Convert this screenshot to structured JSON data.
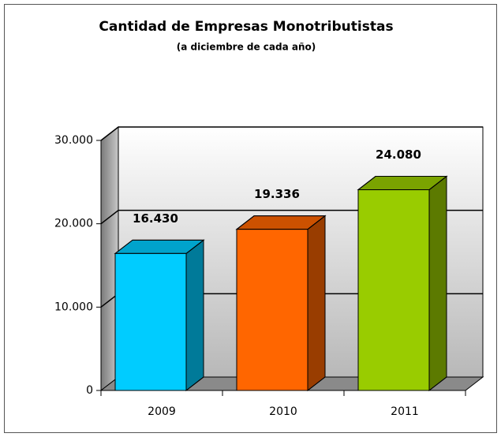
{
  "chart_data": {
    "type": "bar3d",
    "title": "Cantidad de Empresas Monotributistas",
    "subtitle": "(a diciembre de cada año)",
    "categories": [
      "2009",
      "2010",
      "2011"
    ],
    "values": [
      16430,
      19336,
      24080
    ],
    "value_labels": [
      "16.430",
      "19.336",
      "24.080"
    ],
    "colors": [
      "#00ccff",
      "#ff6600",
      "#99cc00"
    ],
    "ylim": [
      0,
      30000
    ],
    "yticks": [
      0,
      {
        "value": 10000,
        "label": "10.000"
      },
      {
        "value": 20000,
        "label": "20.000"
      },
      {
        "value": 30000,
        "label": "30.000"
      }
    ],
    "grid": true
  }
}
